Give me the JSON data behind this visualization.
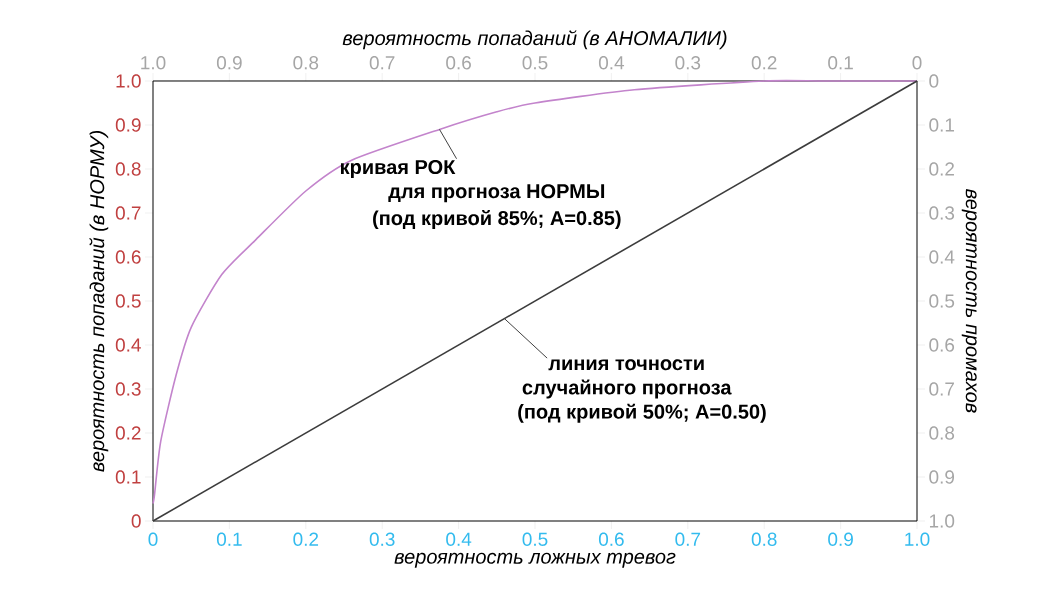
{
  "chart_data": {
    "type": "line",
    "xlabel": "вероятность ложных тревог",
    "ylabel": "вероятность попаданий (в НОРМУ)",
    "x2label": "вероятность попаданий (в АНОМАЛИИ)",
    "y2label": "вероятность промахов",
    "xlim": [
      0,
      1
    ],
    "ylim": [
      0,
      1
    ],
    "x2lim": [
      1,
      0
    ],
    "y2lim": [
      1,
      0
    ],
    "xticks": [
      0,
      0.1,
      0.2,
      0.3,
      0.4,
      0.5,
      0.6,
      0.7,
      0.8,
      0.9,
      {
        "value": 1,
        "label": "1.0"
      }
    ],
    "yticks": [
      0,
      0.1,
      0.2,
      0.3,
      0.4,
      0.5,
      0.6,
      0.7,
      0.8,
      0.9,
      {
        "value": 1,
        "label": "1.0"
      }
    ],
    "x2ticks": [
      {
        "value": 1,
        "label": "1.0"
      },
      0.9,
      0.8,
      0.7,
      0.6,
      0.5,
      0.4,
      0.3,
      0.2,
      0.1,
      0
    ],
    "y2ticks": [
      0,
      0.1,
      0.2,
      0.3,
      0.4,
      0.5,
      0.6,
      0.7,
      0.8,
      0.9,
      {
        "value": 1,
        "label": "1.0"
      }
    ],
    "series": [
      {
        "color": "#c384cc",
        "x": [
          0,
          0.002,
          0.01,
          0.03,
          0.05,
          0.09,
          0.135,
          0.2,
          0.26,
          0.375,
          0.45,
          0.5,
          0.63,
          0.8,
          0.88,
          1
        ],
        "values": [
          0.04,
          0.06,
          0.18,
          0.33,
          0.44,
          0.56,
          0.64,
          0.75,
          0.82,
          0.89,
          0.93,
          0.95,
          0.98,
          1,
          1,
          1
        ]
      },
      {
        "color": "#3c3c3c",
        "x": [
          0,
          1
        ],
        "values": [
          0,
          1
        ]
      }
    ],
    "annotations": [
      {
        "text": "кривая РОК",
        "x": 0.375,
        "y": 0.89
      },
      "для прогноза НОРМЫ",
      "(под кривой 85%; A=0.85)",
      {
        "text": "линия точности",
        "x": 0.46,
        "y": 0.46
      },
      "случайного прогноза",
      "(под кривой 50%; A=0.50)"
    ]
  }
}
